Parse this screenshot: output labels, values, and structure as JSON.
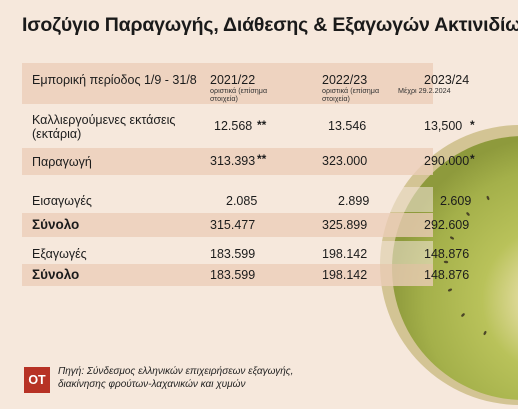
{
  "title": "Ισοζύγιο Παραγωγής, Διάθεσης & Εξαγωγών Ακτινιδίων",
  "header": {
    "period_label": "Εμπορική περίοδος 1/9 - 31/8",
    "col1_year": "2021/22",
    "col1_note": "οριστικά (επίσημα στοιχεία)",
    "col2_year": "2022/23",
    "col2_note": "οριστικά (επίσημα στοιχεία)",
    "col3_year": "2023/24",
    "col3_note": "Μέχρι 29.2.2024"
  },
  "rows": {
    "area_label": "Καλλιεργούμενες εκτάσεις (εκτάρια)",
    "area_values": [
      "12.568",
      "13.546",
      "13,500"
    ],
    "area_marks": [
      "**",
      "",
      "*"
    ],
    "production_label": "Παραγωγή",
    "production_values": [
      "313.393",
      "323.000",
      "290.000"
    ],
    "production_marks": [
      "**",
      "",
      "*"
    ],
    "imports_label": "Εισαγωγές",
    "imports_values": [
      "2.085",
      "2.899",
      "2.609"
    ],
    "total1_label": "Σύνολο",
    "total1_values": [
      "315.477",
      "325.899",
      "292.609"
    ],
    "exports_label": "Εξαγωγές",
    "exports_values": [
      "183.599",
      "198.142",
      "148.876"
    ],
    "total2_label": "Σύνολο",
    "total2_values": [
      "183.599",
      "198.142",
      "148.876"
    ]
  },
  "footer": {
    "badge": "ΟΤ",
    "source_line1": "Πηγή: Σύνδεσμος ελληνικών επιχειρήσεων εξαγωγής,",
    "source_line2": "διακίνησης φρούτων-λαχανικών και χυμών"
  },
  "colors": {
    "background": "#f6e8dc",
    "row_shade": "#ecccb8",
    "badge": "#b73225",
    "kiwi_green": "#9fb24a"
  }
}
